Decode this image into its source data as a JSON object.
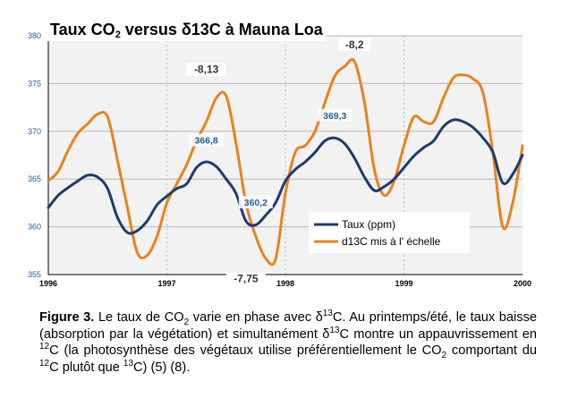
{
  "chart_data": {
    "type": "line",
    "title_parts": {
      "before": "Taux CO",
      "sub": "2",
      "middle": " versus δ13C à Mauna Loa"
    },
    "x": [
      1996.0,
      1996.083,
      1996.167,
      1996.25,
      1996.333,
      1996.417,
      1996.5,
      1996.583,
      1996.667,
      1996.75,
      1996.833,
      1996.917,
      1997.0,
      1997.083,
      1997.167,
      1997.25,
      1997.333,
      1997.417,
      1997.5,
      1997.583,
      1997.667,
      1997.75,
      1997.833,
      1997.917,
      1998.0,
      1998.083,
      1998.167,
      1998.25,
      1998.333,
      1998.417,
      1998.5,
      1998.583,
      1998.667,
      1998.75,
      1998.833,
      1998.917,
      1999.0,
      1999.083,
      1999.167,
      1999.25,
      1999.333,
      1999.417,
      1999.5,
      1999.583,
      1999.667,
      1999.75,
      1999.833,
      1999.917,
      2000.0
    ],
    "series": [
      {
        "name": "Taux (ppm)",
        "color": "#1f3b6e",
        "values": [
          362.0,
          363.3,
          364.1,
          364.8,
          365.4,
          365.2,
          364.0,
          361.0,
          359.4,
          359.6,
          360.6,
          362.3,
          363.2,
          364.0,
          364.5,
          366.2,
          366.8,
          366.3,
          365.0,
          363.5,
          360.6,
          360.2,
          361.2,
          362.5,
          364.8,
          366.0,
          366.8,
          367.8,
          369.0,
          369.3,
          368.7,
          367.2,
          365.2,
          363.8,
          364.2,
          365.0,
          366.2,
          367.4,
          368.3,
          369.0,
          370.5,
          371.2,
          371.0,
          370.4,
          369.3,
          367.8,
          364.6,
          365.5,
          367.5
        ]
      },
      {
        "name": "d13C mis à l' échelle",
        "color": "#e8821e",
        "values": [
          364.8,
          365.8,
          368.0,
          369.8,
          370.8,
          371.8,
          371.5,
          367.0,
          362.0,
          357.3,
          357.0,
          359.0,
          362.5,
          364.5,
          366.5,
          369.0,
          371.0,
          373.5,
          373.7,
          368.8,
          362.5,
          359.0,
          356.7,
          356.6,
          363.5,
          367.8,
          368.5,
          370.0,
          373.0,
          375.8,
          376.8,
          377.3,
          373.0,
          366.0,
          363.3,
          364.8,
          368.5,
          371.5,
          371.0,
          371.0,
          373.5,
          375.6,
          375.9,
          375.5,
          374.0,
          367.8,
          360.0,
          362.5,
          368.5
        ]
      }
    ],
    "annotations": [
      {
        "text": "-8,13",
        "x": 1997.333,
        "y": 376.2,
        "series": 1
      },
      {
        "text": "366,8",
        "x": 1997.333,
        "y": 368.8,
        "series": 0
      },
      {
        "text": "360,2",
        "x": 1997.75,
        "y": 362.3,
        "series": 0
      },
      {
        "text": "-7,75",
        "x": 1997.667,
        "y": 354.3,
        "series": 1
      },
      {
        "text": "369,3",
        "x": 1998.417,
        "y": 371.4,
        "series": 0
      },
      {
        "text": "-8,2",
        "x": 1998.583,
        "y": 378.8,
        "series": 1
      }
    ],
    "xlim": [
      1996,
      2000
    ],
    "ylim": [
      355,
      380
    ],
    "xticks": [
      "1996",
      "1997",
      "1998",
      "1999",
      "2000"
    ],
    "yticks": [
      "355",
      "360",
      "365",
      "370",
      "375",
      "380"
    ],
    "grid": true,
    "legend_position": "bottom-right",
    "colors": {
      "plot_bg": "#f2f2f2",
      "grid": "#b8b8b8",
      "axis": "#000000",
      "label_series0": "#1f5e99",
      "label_series1": "#333333"
    }
  },
  "caption": {
    "label": "Figure 3.",
    "t1": " Le taux de CO",
    "s1": "2",
    "t2": " varie en phase avec δ",
    "p1": "13",
    "t3": "C. Au printemps/été, le taux baisse (absorption par la végétation) et simultanément δ",
    "p2": "13",
    "t4": "C montre un appauvrissement en ",
    "p3": "12",
    "t5": "C    (la photosynthèse des végétaux utilise préférentiellement le CO",
    "s2": "2",
    "t6": "  comportant du ",
    "p4": "12",
    "t7": "C plutôt que ",
    "p5": "13",
    "t8": "C) (5) (8)."
  }
}
